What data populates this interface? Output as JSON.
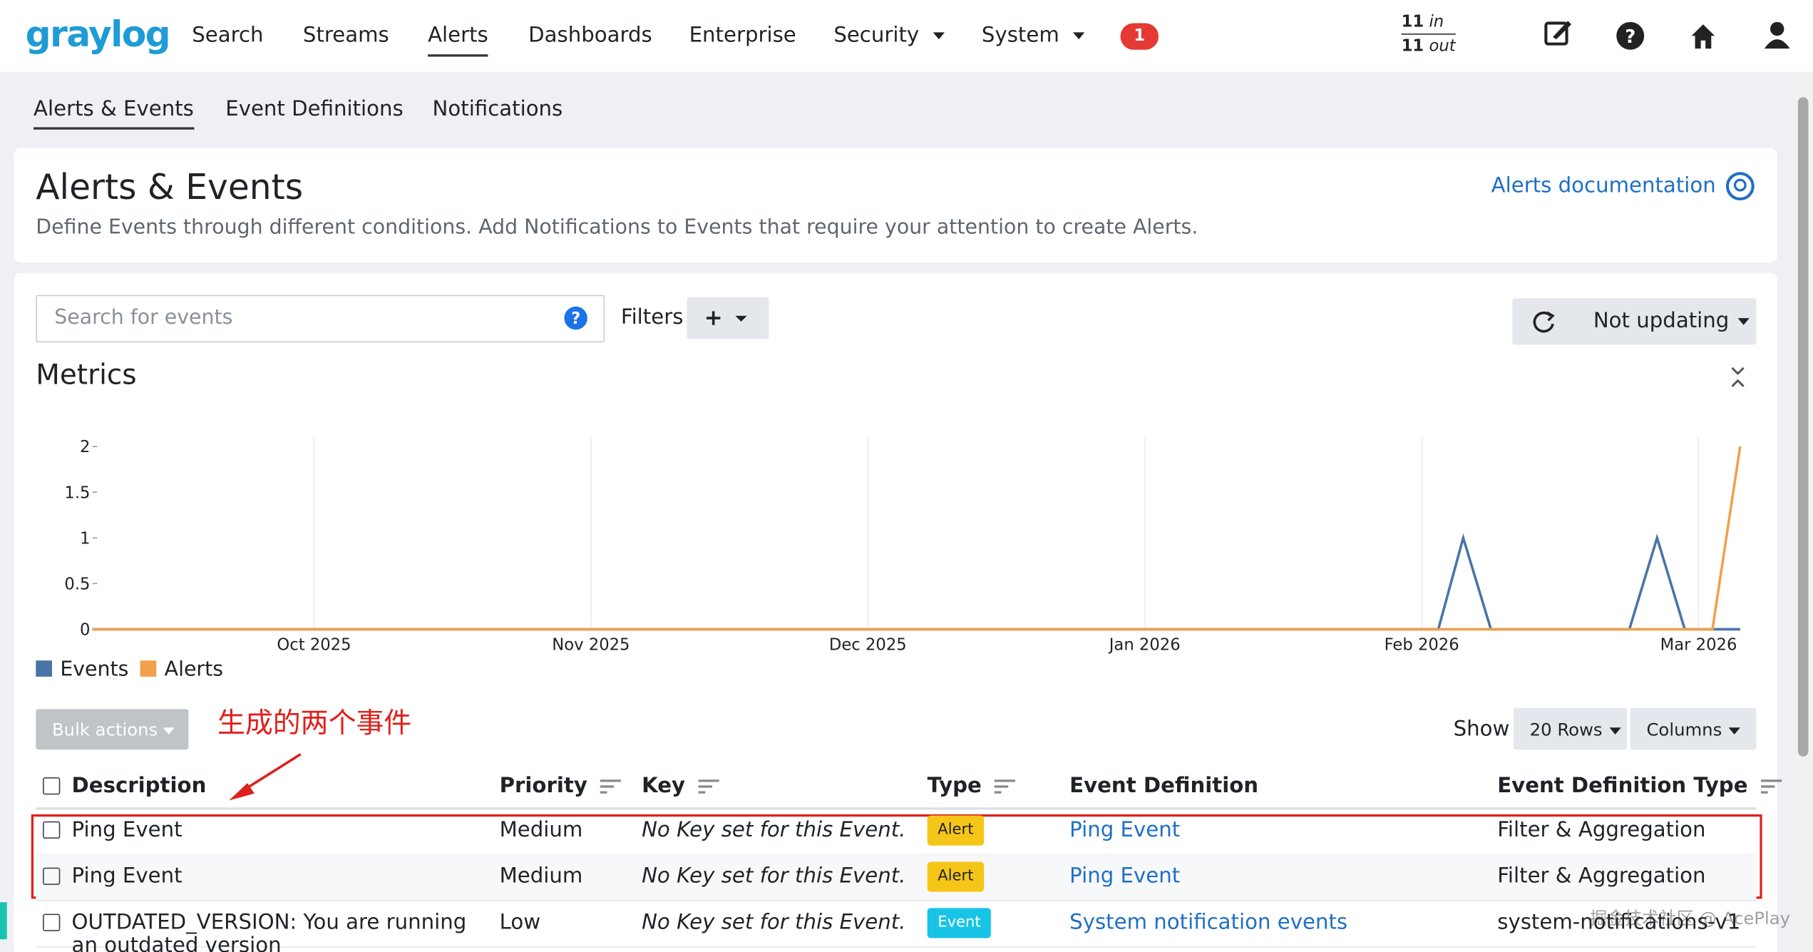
{
  "nav": {
    "logo": "graylog",
    "items": [
      "Search",
      "Streams",
      "Alerts",
      "Dashboards",
      "Enterprise",
      "Security",
      "System"
    ],
    "notification_count": 1,
    "throughput": {
      "in_count": "11",
      "in_label": "in",
      "out_count": "11",
      "out_label": "out"
    }
  },
  "subnav": [
    "Alerts & Events",
    "Event Definitions",
    "Notifications"
  ],
  "header": {
    "title": "Alerts & Events",
    "description": "Define Events through different conditions. Add Notifications to Events that require your attention to create Alerts.",
    "doc_link": "Alerts documentation"
  },
  "toolbar": {
    "search_placeholder": "Search for events",
    "filters_label": "Filters",
    "refresh": "Not updating"
  },
  "chart_data": {
    "type": "line",
    "title": "Metrics",
    "series": [
      {
        "name": "Events",
        "color": "#4a74a8",
        "x": [
          -0.8,
          4.06,
          4.15,
          4.25,
          4.75,
          4.85,
          4.95,
          5.15
        ],
        "values": [
          0,
          0,
          1,
          0,
          0,
          1,
          0,
          0
        ]
      },
      {
        "name": "Alerts",
        "color": "#f0a04b",
        "x": [
          -0.8,
          5.05,
          5.15
        ],
        "values": [
          0,
          0,
          2
        ]
      }
    ],
    "xlim": [
      -0.8,
      5.15
    ],
    "xticks": [
      {
        "value": 0,
        "label": "Oct 2025"
      },
      {
        "value": 1,
        "label": "Nov 2025"
      },
      {
        "value": 2,
        "label": "Dec 2025"
      },
      {
        "value": 3,
        "label": "Jan 2026"
      },
      {
        "value": 4,
        "label": "Feb 2026"
      },
      {
        "value": 5,
        "label": "Mar 2026"
      }
    ],
    "ylim": [
      0,
      2
    ],
    "yticks": [
      0,
      0.5,
      1,
      1.5,
      2
    ],
    "grid": true,
    "legend": "bottom-left"
  },
  "table_controls": {
    "bulk_actions": "Bulk actions",
    "show_label": "Show",
    "rows": "20 Rows",
    "columns": "Columns"
  },
  "annotation": "生成的两个事件",
  "table": {
    "columns": [
      "Description",
      "Priority",
      "Key",
      "Type",
      "Event Definition",
      "Event Definition Type"
    ],
    "rows": [
      [
        "Ping Event",
        "Medium",
        "No Key set for this Event.",
        "Alert",
        "Ping Event",
        "Filter & Aggregation"
      ],
      [
        "Ping Event",
        "Medium",
        "No Key set for this Event.",
        "Alert",
        "Ping Event",
        "Filter & Aggregation"
      ],
      [
        "OUTDATED_VERSION: You are running an outdated version",
        "Low",
        "No Key set for this Event.",
        "Event",
        "System notification events",
        "system-notifications-v1"
      ]
    ]
  },
  "watermark": "掘金技术社区 @ AcePlay"
}
